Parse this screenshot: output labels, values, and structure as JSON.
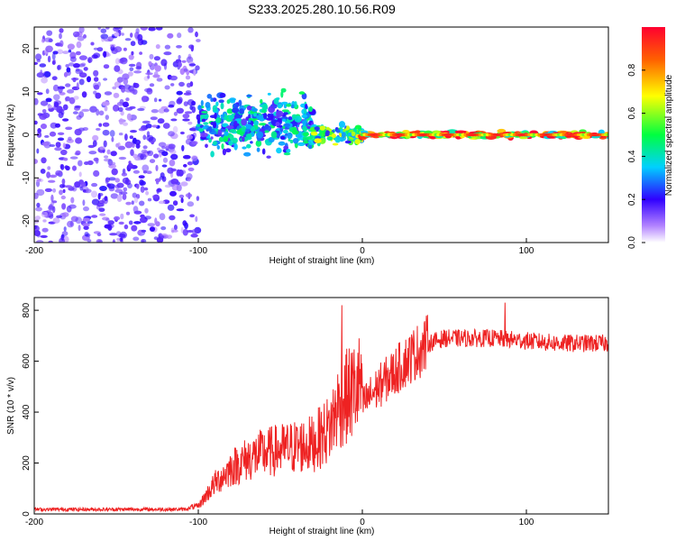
{
  "title": "S233.2025.280.10.56.R09",
  "colorbar": {
    "label": "Normalized spectral amplitude",
    "ticks": [
      "0.0",
      "0.2",
      "0.4",
      "0.6",
      "0.8"
    ]
  },
  "chart_data": [
    {
      "type": "heatmap",
      "title": "S233.2025.280.10.56.R09",
      "xlabel": "Height of straight line (km)",
      "ylabel": "Frequency (Hz)",
      "xlim": [
        -200,
        150
      ],
      "ylim": [
        -25,
        25
      ],
      "xticks": [
        "-200",
        "-100",
        "0",
        "100"
      ],
      "yticks": [
        "-20",
        "-10",
        "0",
        "10",
        "20"
      ],
      "colorbar_label": "Normalized spectral amplitude",
      "colorbar_range": [
        0,
        1
      ],
      "description_regions": [
        {
          "x_range": [
            -200,
            -100
          ],
          "freq_range": [
            -25,
            25
          ],
          "amplitude": 0.15
        },
        {
          "x_range": [
            -100,
            -30
          ],
          "freq_range": [
            -8,
            10
          ],
          "amplitude": 0.35
        },
        {
          "x_range": [
            -30,
            0
          ],
          "freq_range": [
            -3,
            3
          ],
          "amplitude": 0.5
        },
        {
          "x_range": [
            0,
            150
          ],
          "freq_range": [
            -1,
            1
          ],
          "amplitude": 0.85
        }
      ]
    },
    {
      "type": "line",
      "xlabel": "Height of straight line (km)",
      "ylabel": "SNR (10 * v/v)",
      "xlim": [
        -200,
        150
      ],
      "ylim": [
        0,
        850
      ],
      "xticks": [
        "-200",
        "-100",
        "0",
        "100"
      ],
      "yticks": [
        "0",
        "200",
        "400",
        "600",
        "800"
      ],
      "series": [
        {
          "name": "SNR",
          "color": "#ee2222",
          "x": [
            -200,
            -150,
            -110,
            -100,
            -90,
            -80,
            -70,
            -60,
            -50,
            -40,
            -30,
            -20,
            -15,
            -10,
            0,
            10,
            20,
            30,
            40,
            50,
            60,
            80,
            100,
            120,
            150
          ],
          "values": [
            18,
            18,
            18,
            25,
            100,
            150,
            180,
            200,
            210,
            220,
            230,
            280,
            350,
            380,
            430,
            500,
            560,
            620,
            670,
            690,
            690,
            690,
            680,
            670,
            670
          ]
        }
      ]
    }
  ]
}
